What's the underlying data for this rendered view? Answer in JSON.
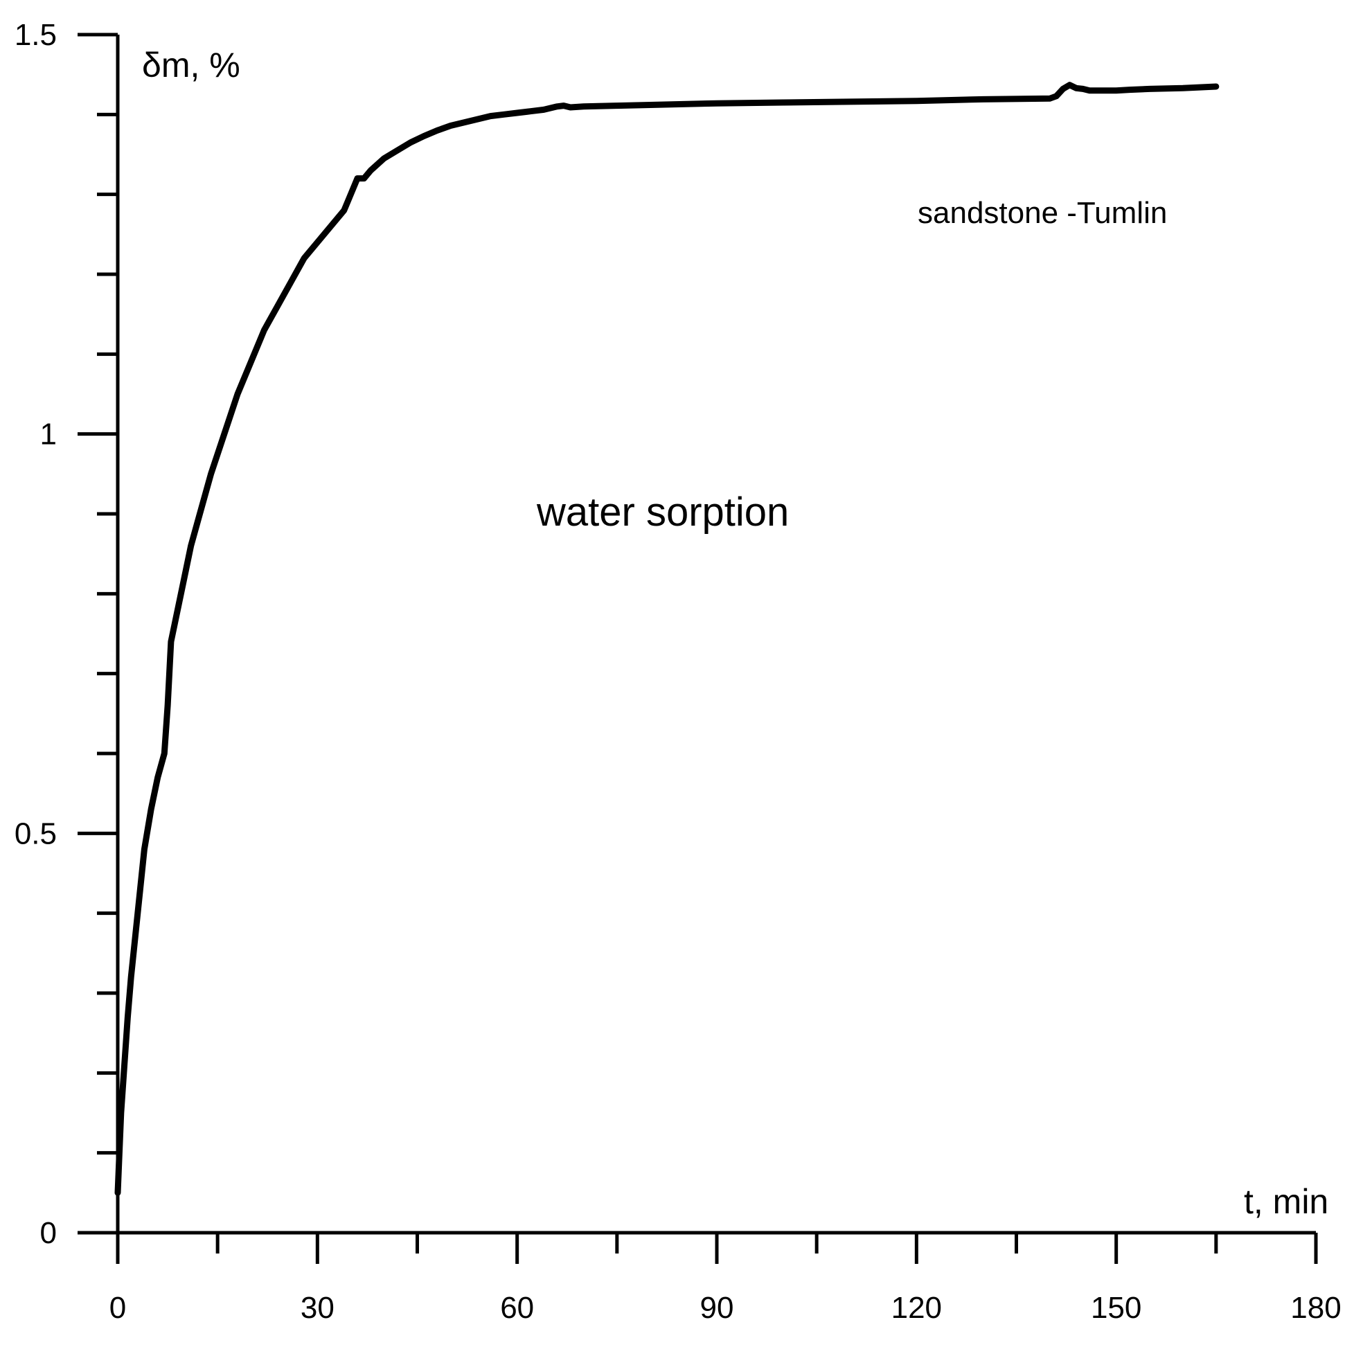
{
  "chart_data": {
    "type": "line",
    "title": "",
    "xlabel": "t, min",
    "ylabel": "δm, %",
    "xlim": [
      0,
      180
    ],
    "ylim": [
      0,
      1.5
    ],
    "x_ticks": [
      0,
      30,
      60,
      90,
      120,
      150,
      180
    ],
    "x_minor_ticks": [
      15,
      45,
      75,
      105,
      135,
      165
    ],
    "y_ticks": [
      0,
      0.5,
      1,
      1.5
    ],
    "y_tick_labels": [
      "0",
      "0.5",
      "1",
      "1.5"
    ],
    "y_minor_ticks": [
      0.1,
      0.2,
      0.3,
      0.4,
      0.6,
      0.7,
      0.8,
      0.9,
      1.1,
      1.2,
      1.3,
      1.4
    ],
    "grid": false,
    "annotations": [
      {
        "text": "water sorption",
        "x": 84,
        "y": 0.89
      },
      {
        "text": "sandstone -Tumlin",
        "x": 120,
        "y": 1.19
      }
    ],
    "series": [
      {
        "color": "#000000",
        "x": [
          0,
          0.2,
          0.5,
          1,
          1.5,
          2,
          3,
          4,
          5,
          6,
          7,
          7.5,
          8,
          9,
          10,
          11,
          12,
          14,
          16,
          18,
          20,
          22,
          24,
          26,
          28,
          30,
          32,
          34,
          35,
          36,
          37,
          38,
          40,
          42,
          44,
          46,
          48,
          50,
          52,
          54,
          56,
          58,
          60,
          62,
          64,
          66,
          67,
          68,
          70,
          75,
          80,
          90,
          100,
          110,
          120,
          130,
          140,
          141,
          142,
          143,
          144,
          145,
          146,
          148,
          150,
          152,
          155,
          160,
          165
        ],
        "y": [
          0.05,
          0.09,
          0.15,
          0.21,
          0.27,
          0.32,
          0.4,
          0.48,
          0.53,
          0.57,
          0.6,
          0.66,
          0.74,
          0.78,
          0.82,
          0.86,
          0.89,
          0.95,
          1.0,
          1.05,
          1.09,
          1.13,
          1.16,
          1.19,
          1.22,
          1.24,
          1.26,
          1.28,
          1.3,
          1.32,
          1.32,
          1.33,
          1.345,
          1.355,
          1.365,
          1.373,
          1.38,
          1.386,
          1.39,
          1.394,
          1.398,
          1.4,
          1.402,
          1.404,
          1.406,
          1.41,
          1.411,
          1.409,
          1.41,
          1.411,
          1.412,
          1.414,
          1.415,
          1.416,
          1.417,
          1.419,
          1.42,
          1.423,
          1.432,
          1.437,
          1.433,
          1.432,
          1.43,
          1.43,
          1.43,
          1.431,
          1.432,
          1.433,
          1.435
        ]
      }
    ]
  }
}
